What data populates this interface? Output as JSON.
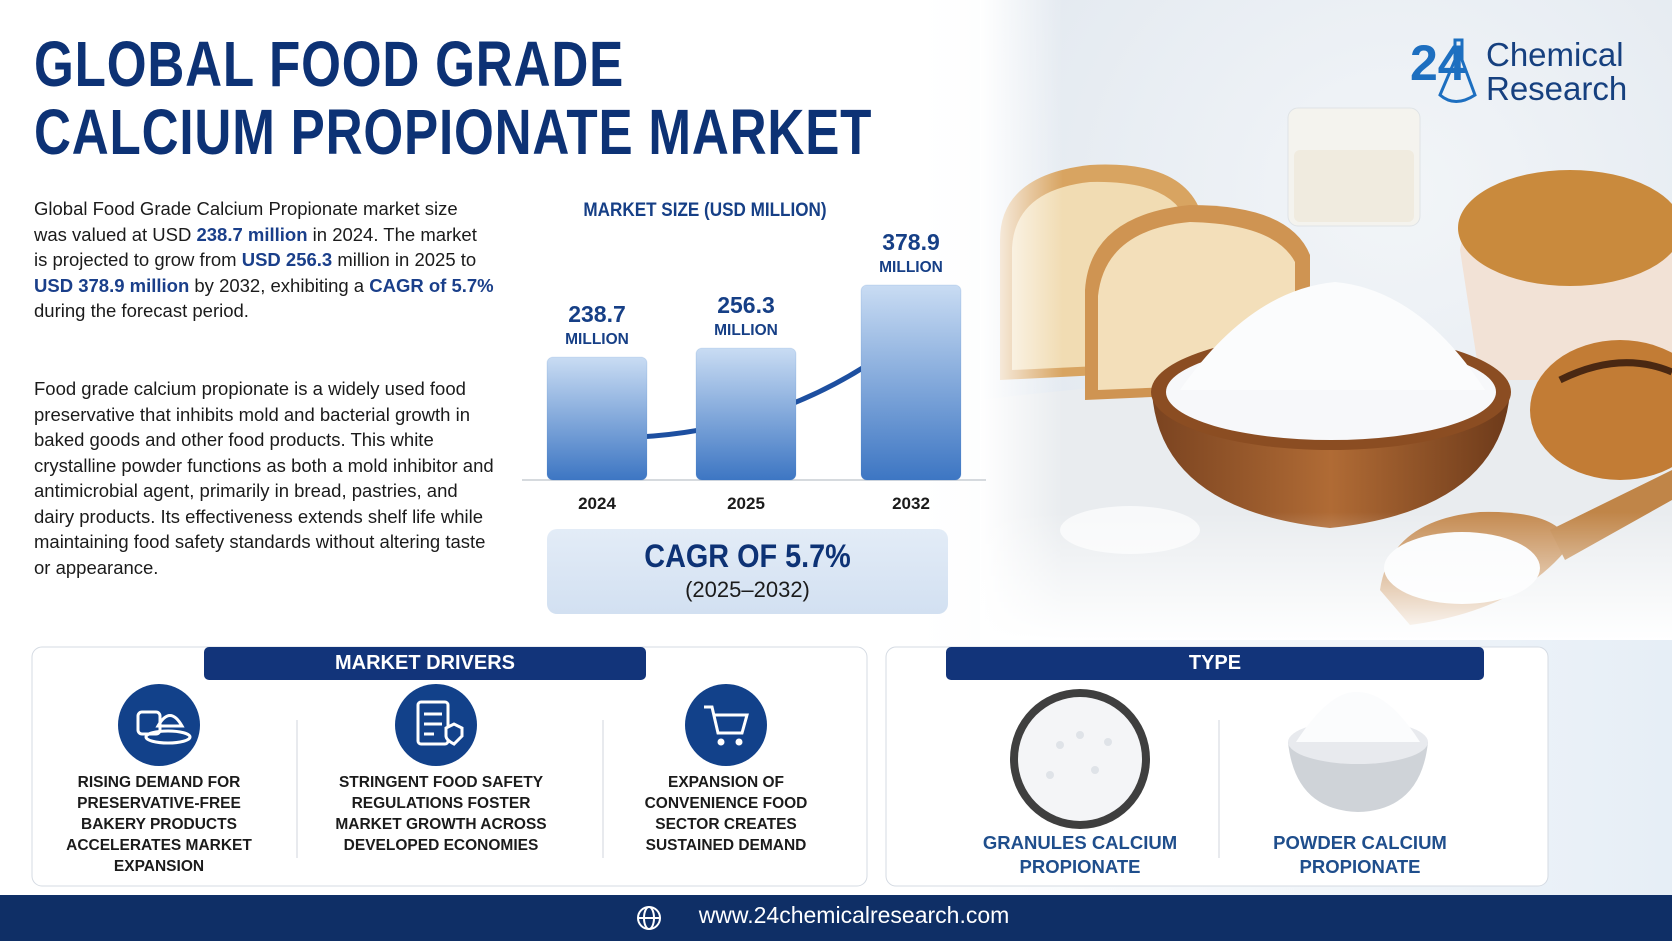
{
  "header": {
    "title_lines": [
      "GLOBAL FOOD GRADE",
      "CALCIUM PROPIONATE MARKET"
    ]
  },
  "logo": {
    "number": "24",
    "lines": [
      "Chemical",
      "Research"
    ]
  },
  "intro": {
    "paragraphs": [
      [
        {
          "text": "Global Food Grade Calcium Propionate market size was valued at USD ",
          "bold": false
        },
        {
          "text": "238.7 million",
          "bold": true
        },
        {
          "text": " in 2024. The market is projected to grow from ",
          "bold": false
        },
        {
          "text": "USD 256.3",
          "bold": true
        },
        {
          "text": " million in 2025 to ",
          "bold": false
        },
        {
          "text": "USD 378.9 million",
          "bold": true
        },
        {
          "text": " by 2032, exhibiting a ",
          "bold": false
        },
        {
          "text": "CAGR of 5.7%",
          "bold": true
        },
        {
          "text": " during the forecast period.",
          "bold": false
        }
      ],
      [
        {
          "text": "Food grade calcium propionate is a widely used food preservative that inhibits mold and bacterial growth in baked goods and other food products. This white crystalline powder functions as both a mold inhibitor and antimicrobial agent, primarily in bread, pastries, and dairy products. Its effectiveness extends shelf life while maintaining food safety standards without altering taste or appearance.",
          "bold": false
        }
      ]
    ]
  },
  "chart_data": {
    "type": "bar",
    "title": "MARKET SIZE (USD MILLION)",
    "categories": [
      "2024",
      "2025",
      "2032"
    ],
    "values": [
      238.7,
      256.3,
      378.9
    ],
    "unit_label": "MILLION",
    "color": "#3d76c3"
  },
  "cagr": {
    "headline": "CAGR OF 5.7%",
    "period": "(2025–2032)"
  },
  "drivers": {
    "title": "MARKET DRIVERS",
    "items": [
      "RISING DEMAND FOR PRESERVATIVE-FREE BAKERY PRODUCTS ACCELERATES MARKET EXPANSION",
      "STRINGENT FOOD SAFETY REGULATIONS FOSTER MARKET GROWTH ACROSS DEVELOPED ECONOMIES",
      "EXPANSION OF CONVENIENCE FOOD SECTOR CREATES SUSTAINED DEMAND"
    ]
  },
  "types": {
    "title": "TYPE",
    "items": [
      "GRANULES CALCIUM PROPIONATE",
      "POWDER CALCIUM PROPIONATE"
    ]
  },
  "footer": {
    "url": "www.24chemicalresearch.com"
  }
}
